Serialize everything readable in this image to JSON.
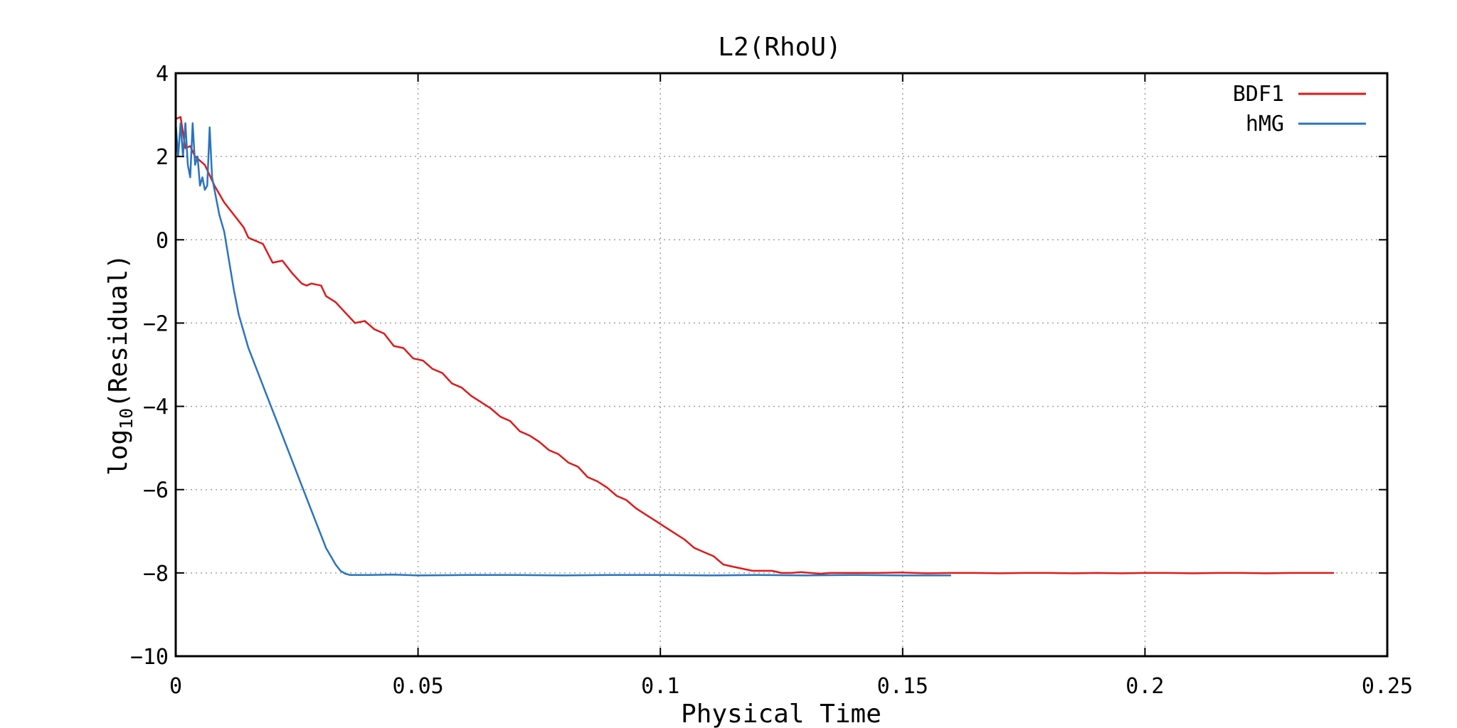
{
  "chart_data": {
    "type": "line",
    "title": "L2(RhoU)",
    "xlabel": "Physical Time",
    "ylabel": {
      "prefix": "log",
      "subscript": "10",
      "suffix": "(Residual)"
    },
    "xlim": [
      0,
      0.25
    ],
    "ylim": [
      -10,
      4
    ],
    "xticks": [
      {
        "value": 0,
        "label": "0"
      },
      {
        "value": 0.05,
        "label": "0.05"
      },
      {
        "value": 0.1,
        "label": "0.1"
      },
      {
        "value": 0.15,
        "label": "0.15"
      },
      {
        "value": 0.2,
        "label": "0.2"
      },
      {
        "value": 0.25,
        "label": "0.25"
      }
    ],
    "yticks": [
      {
        "value": -10,
        "label": "−10"
      },
      {
        "value": -8,
        "label": "−8"
      },
      {
        "value": -6,
        "label": "−6"
      },
      {
        "value": -4,
        "label": "−4"
      },
      {
        "value": -2,
        "label": "−2"
      },
      {
        "value": 0,
        "label": "0"
      },
      {
        "value": 2,
        "label": "2"
      },
      {
        "value": 4,
        "label": "4"
      }
    ],
    "grid": true,
    "legend_position": "top-right",
    "series": [
      {
        "name": "BDF1",
        "color": "#e0191b",
        "x": [
          0.0,
          0.001,
          0.002,
          0.003,
          0.004,
          0.006,
          0.008,
          0.01,
          0.012,
          0.014,
          0.015,
          0.016,
          0.018,
          0.02,
          0.022,
          0.024,
          0.026,
          0.027,
          0.028,
          0.03,
          0.031,
          0.033,
          0.035,
          0.037,
          0.039,
          0.041,
          0.043,
          0.045,
          0.047,
          0.049,
          0.051,
          0.053,
          0.055,
          0.057,
          0.059,
          0.061,
          0.063,
          0.065,
          0.067,
          0.069,
          0.071,
          0.073,
          0.075,
          0.077,
          0.079,
          0.081,
          0.083,
          0.085,
          0.087,
          0.089,
          0.091,
          0.093,
          0.095,
          0.097,
          0.099,
          0.101,
          0.103,
          0.105,
          0.107,
          0.109,
          0.111,
          0.113,
          0.115,
          0.117,
          0.119,
          0.121,
          0.123,
          0.125,
          0.127,
          0.129,
          0.131,
          0.133,
          0.135,
          0.14,
          0.145,
          0.15,
          0.155,
          0.16,
          0.165,
          0.17,
          0.175,
          0.18,
          0.185,
          0.19,
          0.195,
          0.2,
          0.205,
          0.21,
          0.215,
          0.22,
          0.225,
          0.23,
          0.235,
          0.239
        ],
        "y": [
          2.9,
          2.95,
          2.2,
          2.25,
          2.0,
          1.8,
          1.3,
          0.9,
          0.6,
          0.3,
          0.05,
          0.0,
          -0.1,
          -0.55,
          -0.5,
          -0.8,
          -1.05,
          -1.1,
          -1.05,
          -1.1,
          -1.35,
          -1.5,
          -1.75,
          -2.0,
          -1.95,
          -2.15,
          -2.25,
          -2.55,
          -2.6,
          -2.85,
          -2.9,
          -3.1,
          -3.2,
          -3.45,
          -3.55,
          -3.75,
          -3.9,
          -4.05,
          -4.25,
          -4.35,
          -4.6,
          -4.7,
          -4.85,
          -5.05,
          -5.15,
          -5.35,
          -5.45,
          -5.7,
          -5.8,
          -5.95,
          -6.15,
          -6.25,
          -6.45,
          -6.6,
          -6.75,
          -6.9,
          -7.05,
          -7.2,
          -7.4,
          -7.5,
          -7.6,
          -7.8,
          -7.85,
          -7.9,
          -7.95,
          -7.95,
          -7.95,
          -8.0,
          -8.0,
          -7.98,
          -8.0,
          -8.02,
          -8.0,
          -8.0,
          -8.0,
          -7.99,
          -8.01,
          -8.0,
          -8.0,
          -8.01,
          -8.0,
          -8.0,
          -8.01,
          -8.0,
          -8.01,
          -8.0,
          -8.0,
          -8.01,
          -8.0,
          -8.0,
          -8.01,
          -8.0,
          -8.0,
          -8.0
        ]
      },
      {
        "name": "hMG",
        "color": "#2a74be",
        "x": [
          0.0,
          0.0005,
          0.001,
          0.0015,
          0.002,
          0.0025,
          0.003,
          0.0035,
          0.004,
          0.0045,
          0.005,
          0.0055,
          0.006,
          0.0065,
          0.007,
          0.0075,
          0.008,
          0.009,
          0.01,
          0.011,
          0.012,
          0.013,
          0.014,
          0.015,
          0.016,
          0.017,
          0.018,
          0.019,
          0.02,
          0.021,
          0.022,
          0.023,
          0.024,
          0.025,
          0.026,
          0.027,
          0.028,
          0.029,
          0.03,
          0.031,
          0.032,
          0.033,
          0.034,
          0.035,
          0.036,
          0.037,
          0.038,
          0.04,
          0.045,
          0.05,
          0.06,
          0.07,
          0.08,
          0.09,
          0.1,
          0.11,
          0.12,
          0.13,
          0.14,
          0.15,
          0.16
        ],
        "y": [
          2.8,
          2.0,
          2.8,
          2.0,
          2.8,
          1.8,
          1.5,
          2.8,
          1.8,
          2.0,
          1.3,
          1.5,
          1.2,
          1.3,
          2.7,
          1.5,
          1.2,
          0.6,
          0.2,
          -0.5,
          -1.2,
          -1.8,
          -2.2,
          -2.6,
          -2.9,
          -3.2,
          -3.5,
          -3.8,
          -4.1,
          -4.4,
          -4.7,
          -5.0,
          -5.3,
          -5.6,
          -5.9,
          -6.2,
          -6.5,
          -6.8,
          -7.1,
          -7.4,
          -7.6,
          -7.8,
          -7.95,
          -8.02,
          -8.05,
          -8.05,
          -8.05,
          -8.05,
          -8.04,
          -8.06,
          -8.05,
          -8.05,
          -8.06,
          -8.05,
          -8.05,
          -8.06,
          -8.05,
          -8.06,
          -8.05,
          -8.06,
          -8.06
        ]
      }
    ]
  }
}
